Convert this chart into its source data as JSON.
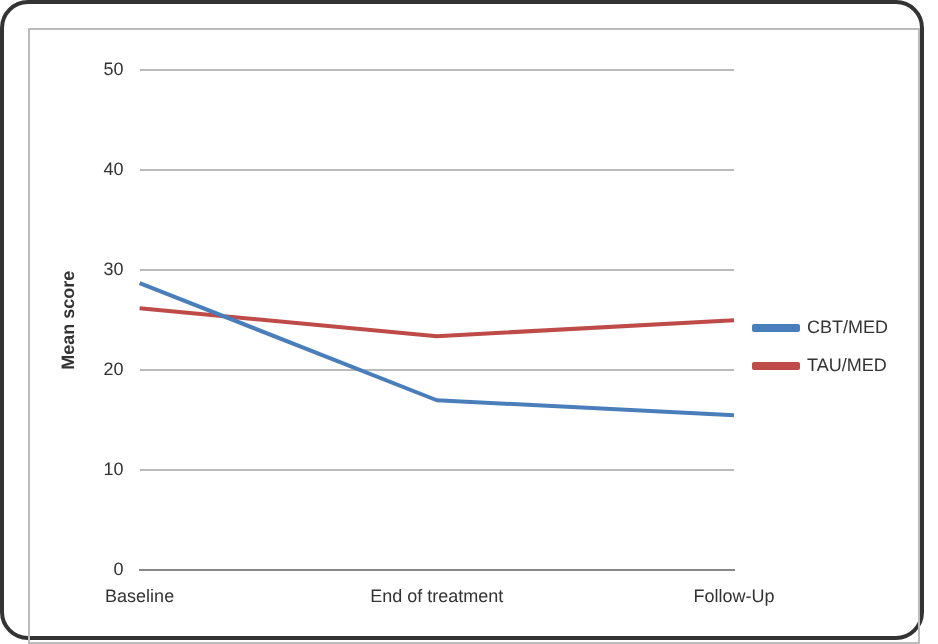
{
  "chart_data": {
    "type": "line",
    "ylabel": "Mean score",
    "categories": [
      "Baseline",
      "End of treatment",
      "Follow-Up"
    ],
    "series": [
      {
        "name": "CBT/MED",
        "color": "#4a7ebb",
        "values": [
          28.7,
          17.0,
          15.5
        ]
      },
      {
        "name": "TAU/MED",
        "color": "#be4b48",
        "values": [
          26.2,
          23.4,
          25.0
        ]
      }
    ],
    "ylim": [
      0,
      50
    ],
    "yticks": [
      0,
      10,
      20,
      30,
      40,
      50
    ],
    "grid": "y",
    "legend": "right",
    "marker": "none"
  }
}
